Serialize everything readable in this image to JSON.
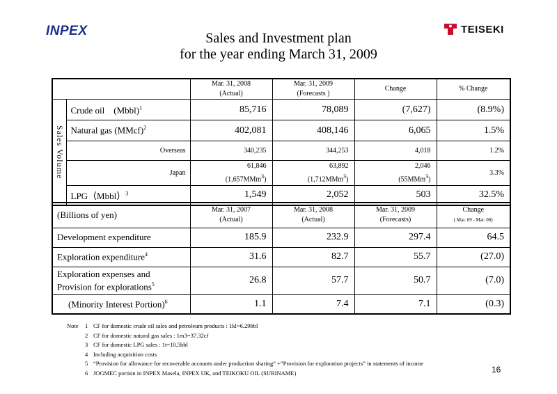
{
  "brand_left": "INPEX",
  "brand_right": "TEISEKI",
  "title_line1": "Sales and Investment plan",
  "title_line2": "for the year ending March 31,  2009",
  "sales_table": {
    "headers": [
      {
        "line1": "Mar. 31, 2008",
        "line2": "(Actual)"
      },
      {
        "line1": "Mar. 31, 2009",
        "line2": "(Forecasts )"
      },
      {
        "line1": "Change",
        "line2": ""
      },
      {
        "line1": "% Change",
        "line2": ""
      }
    ],
    "section_label": "Sales Volume",
    "rows": [
      {
        "label": "Crude oil　(Mbbl)",
        "sup": "1",
        "values": [
          "85,716",
          "78,089",
          "(7,627)",
          "(8.9%)"
        ]
      },
      {
        "label": "Natural gas (MMcf)",
        "sup": "2",
        "values": [
          "402,081",
          "408,146",
          "6,065",
          "1.5%"
        ]
      },
      {
        "label": "Overseas",
        "sup": "",
        "values": [
          "340,235",
          "344,253",
          "4,018",
          "1.2%"
        ]
      },
      {
        "label": "Japan",
        "sup": "",
        "values": [
          "61,846",
          "63,892",
          "2,046",
          "3.3%"
        ],
        "sub": [
          "(1,657MMm",
          "(1,712MMm",
          "(55MMm"
        ],
        "sub_sup": "3",
        "sub_close": ")"
      },
      {
        "label": "LPG（Mbbl）",
        "sup": "3",
        "values": [
          "1,549",
          "2,052",
          "503",
          "32.5%"
        ]
      }
    ]
  },
  "invest_table": {
    "unit_label": "(Billions of yen)",
    "headers": [
      {
        "line1": "Mar. 31, 2007",
        "line2": "(Actual)"
      },
      {
        "line1": "Mar. 31, 2008",
        "line2": "(Actual)"
      },
      {
        "line1": "Mar. 31, 2009",
        "line2": "(Forecasts)"
      },
      {
        "line1": "Change",
        "line2": "( Mar. 09 - Mar. 08)"
      }
    ],
    "rows": [
      {
        "label": "Development expenditure",
        "sup": "",
        "values": [
          "185.9",
          "232.9",
          "297.4",
          "64.5"
        ]
      },
      {
        "label": "Exploration expenditure",
        "sup": "4",
        "values": [
          "31.6",
          "82.7",
          "55.7",
          "(27.0)"
        ]
      },
      {
        "label": "Exploration expenses and",
        "label2": "Provision for explorations",
        "sup": "5",
        "values": [
          "26.8",
          "57.7",
          "50.7",
          "(7.0)"
        ]
      },
      {
        "label": "(Minority Interest Portion)",
        "sup": "6",
        "values": [
          "1.1",
          "7.4",
          "7.1",
          "(0.3)"
        ]
      }
    ]
  },
  "notes_prefix": "Note",
  "notes": [
    {
      "n": "1",
      "text": "CF for domestic crude oil sales and petroleum products : 1kl=6.29bbl"
    },
    {
      "n": "2",
      "text": "CF for domestic natural gas sales : 1m3=37.32cf"
    },
    {
      "n": "3",
      "text": "CF for domestic LPG sales : 1t=10.5bbl"
    },
    {
      "n": "4",
      "text": "Including acquisition costs"
    },
    {
      "n": "5",
      "text": "“Provision for allowance for recoverable accounts under production sharing” +”Provision for exploration projects” in statements of income"
    },
    {
      "n": "6",
      "text": "JOGMEC portion in INPEX Masela, INPEX UK, and TEIKOKU OIL (SURINAME)"
    }
  ],
  "page_number": "16",
  "colors": {
    "inpex_blue": "#1a2f8c",
    "teiseki_red": "#c8102e"
  }
}
